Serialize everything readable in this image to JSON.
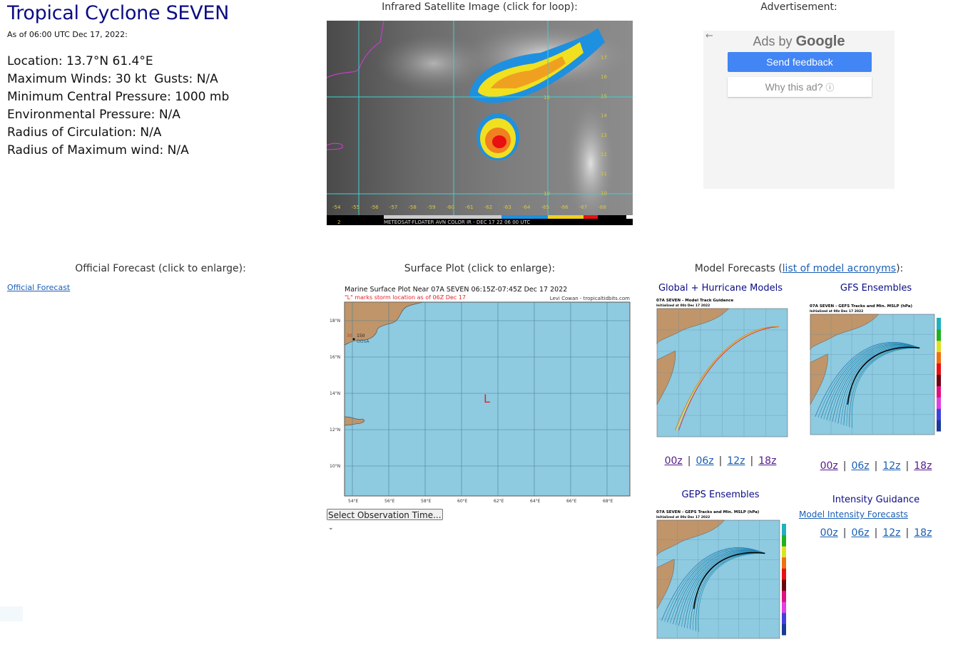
{
  "storm": {
    "title": "Tropical Cyclone SEVEN",
    "as_of": "As of 06:00 UTC Dec 17, 2022:",
    "stats": [
      "Location: 13.7°N 61.4°E",
      "Maximum Winds: 30 kt  Gusts: N/A",
      "Minimum Central Pressure: 1000 mb",
      "Environmental Pressure: N/A",
      "Radius of Circulation: N/A",
      "Radius of Maximum wind: N/A"
    ]
  },
  "satellite": {
    "heading": "Infrared Satellite Image (click for loop):",
    "caption": "METEOSAT-FLOATER AVN COLOR IR - DEC 17 22 06 00 UTC",
    "corner_label": "2",
    "lon_labels": [
      "-54",
      "-55",
      "-56",
      "-57",
      "-58",
      "-59",
      "-60",
      "-61",
      "-62",
      "-63",
      "-64",
      "-65",
      "-66",
      "-67",
      "-68"
    ],
    "lat_labels": [
      "17",
      "16",
      "15",
      "14",
      "13",
      "12",
      "11",
      "10"
    ],
    "inner_labels": [
      "15",
      "10"
    ]
  },
  "advertisement": {
    "heading": "Advertisement:",
    "ads_by": "Ads by",
    "google": "Google",
    "send_feedback": "Send feedback",
    "why_this_ad": "Why this ad?",
    "back_icon": "arrow-left-icon",
    "info_icon": "info-circle-icon"
  },
  "official": {
    "heading": "Official Forecast (click to enlarge):",
    "link": "Official Forecast"
  },
  "surface": {
    "heading": "Surface Plot (click to enlarge):",
    "plot_title": "Marine Surface Plot Near 07A SEVEN 06:15Z-07:45Z Dec 17 2022",
    "plot_subtitle": "\"L\" marks storm location as of 06Z Dec 17",
    "credit": "Levi Cowan - tropicaltidbits.com",
    "lat_labels": [
      "18°N",
      "16°N",
      "14°N",
      "12°N",
      "10°N"
    ],
    "lon_labels": [
      "54°E",
      "56°E",
      "58°E",
      "60°E",
      "62°E",
      "64°E",
      "66°E",
      "68°E"
    ],
    "storm_marker": "L",
    "station": {
      "temp": "30",
      "pressure": "150",
      "id": "OOSA"
    },
    "select_label": "Select Observation Time...",
    "colors": {
      "ocean": "#8ecae0",
      "land": "#c0956a",
      "marker": "#e8202a"
    }
  },
  "models": {
    "heading_prefix": "Model Forecasts (",
    "heading_link": "list of model acronyms",
    "heading_suffix": "):",
    "global": {
      "heading": "Global + Hurricane Models",
      "img_title": "07A SEVEN - Model Track Guidance",
      "img_sub": "Initialized at 00z Dec 17 2022",
      "runs": [
        "00z",
        "06z",
        "12z",
        "18z"
      ]
    },
    "gfs": {
      "heading": "GFS Ensembles",
      "img_title": "07A SEVEN - GEFS Tracks and Min. MSLP (hPa)",
      "img_sub": "Initialized at 00z Dec 17 2022",
      "runs": [
        "00z",
        "06z",
        "12z",
        "18z"
      ]
    },
    "geps": {
      "heading": "GEPS Ensembles",
      "img_title": "07A SEVEN - GEPS Tracks and Min. MSLP (hPa)",
      "img_sub": "Initialized at 00z Dec 17 2022"
    },
    "intensity": {
      "heading": "Intensity Guidance",
      "link": "Model Intensity Forecasts",
      "runs": [
        "00z",
        "06z",
        "12z",
        "18z"
      ]
    }
  }
}
